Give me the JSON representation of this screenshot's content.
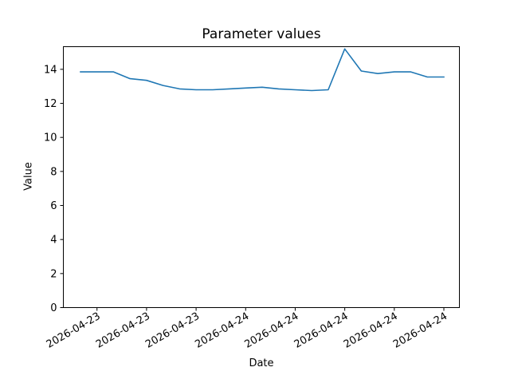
{
  "figure": {
    "title": "Parameter values",
    "xlabel": "Date",
    "ylabel": "Value"
  },
  "chart_data": {
    "type": "line",
    "title": "Parameter values",
    "xlabel": "Date",
    "ylabel": "Value",
    "grid": false,
    "legend": "none",
    "background": "#ffffff",
    "text_color": "#000000",
    "spine_color": "#000000",
    "ylim": [
      0,
      15.33
    ],
    "y_ticks": [
      0,
      2,
      4,
      6,
      8,
      10,
      12,
      14
    ],
    "x_tick_labels": [
      "2026-04-23",
      "2026-04-23",
      "2026-04-23",
      "2026-04-24",
      "2026-04-24",
      "2026-04-24",
      "2026-04-24",
      "2026-04-24"
    ],
    "x_tick_point_indices": [
      1,
      4,
      7,
      10,
      13,
      16,
      19,
      22
    ],
    "x_tick_rotation_deg": 30,
    "series": [
      {
        "name": "parameter-values",
        "color": "#1f77b4",
        "values": [
          13.85,
          13.85,
          13.85,
          13.45,
          13.35,
          13.05,
          12.85,
          12.8,
          12.8,
          12.85,
          12.9,
          12.95,
          12.85,
          12.8,
          12.75,
          12.8,
          15.2,
          13.9,
          13.75,
          13.85,
          13.85,
          13.55,
          13.55
        ]
      }
    ]
  }
}
